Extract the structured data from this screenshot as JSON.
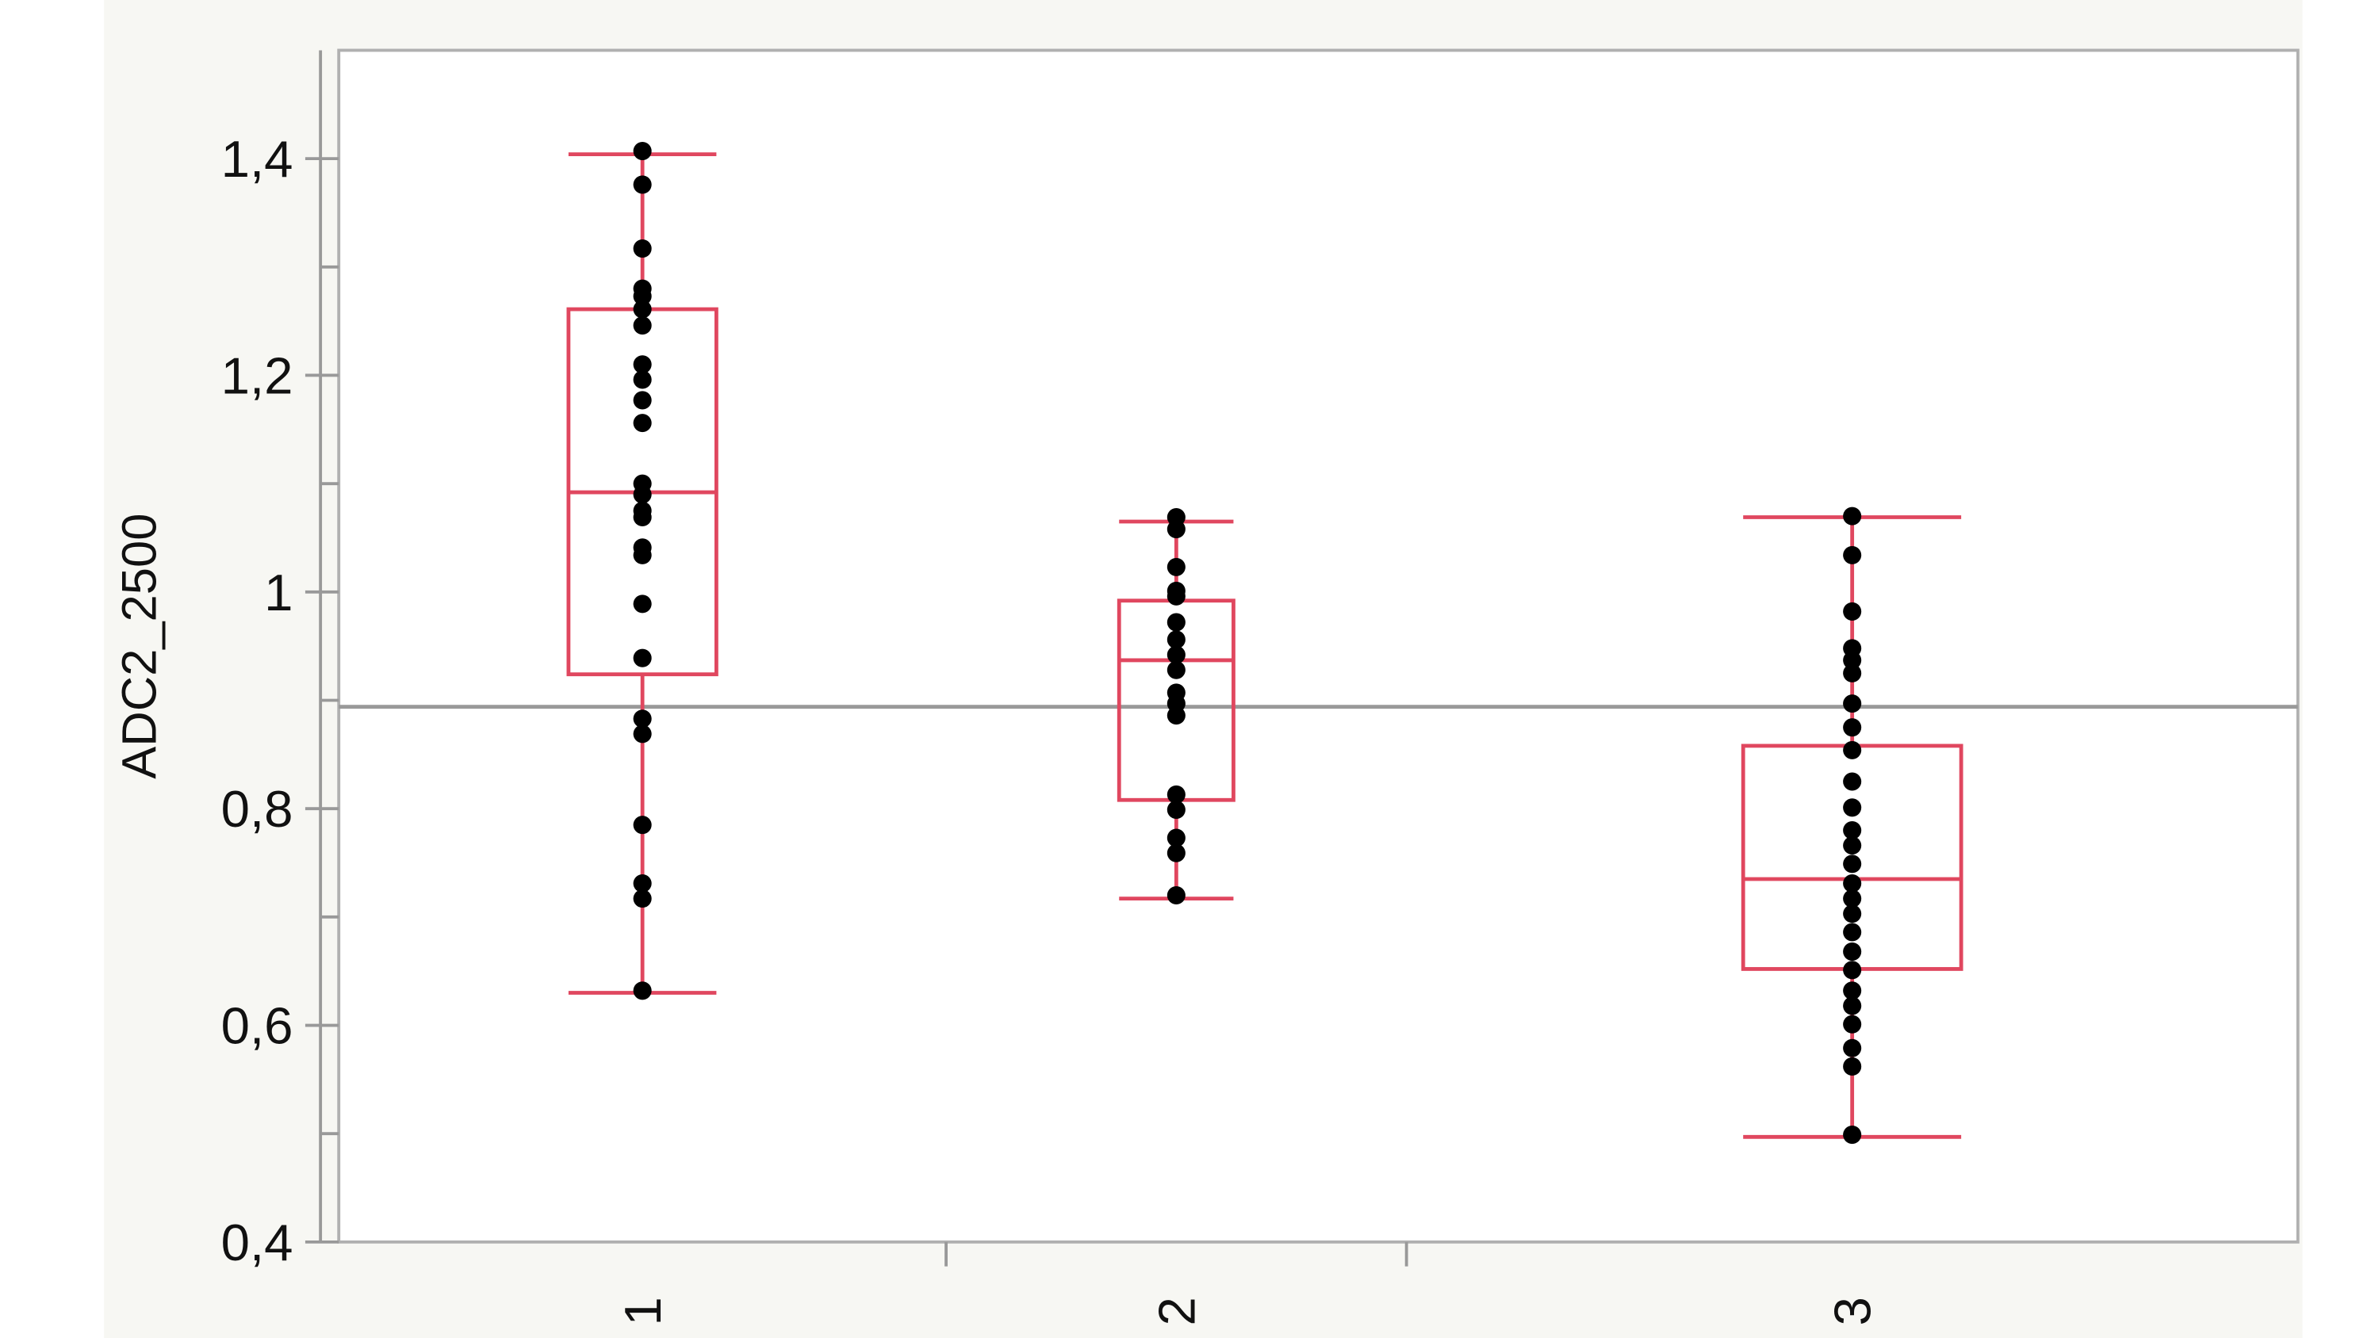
{
  "chart_data": {
    "type": "box",
    "y_label": "ADC2_2500",
    "categories": [
      "1",
      "2",
      "3"
    ],
    "ylim": [
      0.4,
      1.5
    ],
    "yticks": [
      {
        "value": 0.4,
        "label": "0,4"
      },
      {
        "value": 0.6,
        "label": "0,6"
      },
      {
        "value": 0.8,
        "label": "0,8"
      },
      1,
      {
        "value": 1.2,
        "label": "1,2"
      },
      {
        "value": 1.4,
        "label": "1,4"
      }
    ],
    "yminor": [
      0.5,
      0.7,
      0.9,
      1.1,
      1.3
    ],
    "reference_line": 0.894,
    "box_color": "#e0475f",
    "point_color": "#000000",
    "reference_color": "#999999",
    "groups": [
      {
        "whisker_low": 0.63,
        "q1": 0.924,
        "median": 1.092,
        "q3": 1.261,
        "whisker_high": 1.404,
        "points": [
          1.407,
          1.376,
          1.317,
          1.28,
          1.273,
          1.261,
          1.246,
          1.21,
          1.196,
          1.177,
          1.156,
          1.1,
          1.09,
          1.075,
          1.069,
          1.041,
          1.034,
          0.989,
          0.939,
          0.883,
          0.869,
          0.785,
          0.731,
          0.717,
          0.632
        ]
      },
      {
        "whisker_low": 0.717,
        "q1": 0.808,
        "median": 0.937,
        "q3": 0.992,
        "whisker_high": 1.065,
        "points": [
          1.069,
          1.058,
          1.023,
          1.001,
          0.996,
          0.972,
          0.956,
          0.942,
          0.928,
          0.907,
          0.897,
          0.886,
          0.813,
          0.799,
          0.773,
          0.759,
          0.72
        ]
      },
      {
        "whisker_low": 0.497,
        "q1": 0.652,
        "median": 0.735,
        "q3": 0.858,
        "whisker_high": 1.069,
        "points": [
          1.07,
          1.034,
          0.982,
          0.948,
          0.937,
          0.925,
          0.897,
          0.875,
          0.854,
          0.825,
          0.801,
          0.78,
          0.766,
          0.749,
          0.731,
          0.717,
          0.703,
          0.686,
          0.668,
          0.651,
          0.632,
          0.618,
          0.601,
          0.579,
          0.562,
          0.499
        ]
      }
    ]
  }
}
